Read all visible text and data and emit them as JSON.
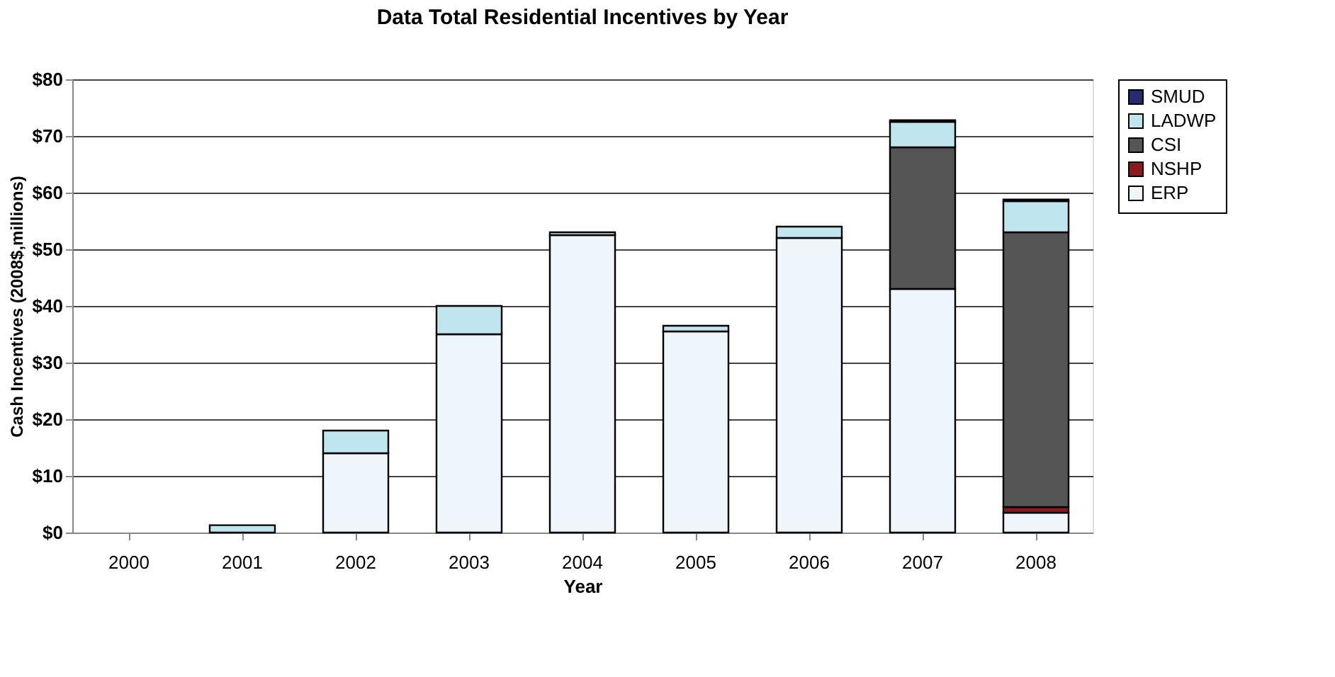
{
  "chart_data": {
    "type": "bar",
    "title": "Data Total Residential Incentives by Year",
    "xlabel": "Year",
    "ylabel": "Cash Incentives (2008$,millions)",
    "categories": [
      "2000",
      "2001",
      "2002",
      "2003",
      "2004",
      "2005",
      "2006",
      "2007",
      "2008"
    ],
    "stacked": true,
    "series": [
      {
        "name": "ERP",
        "color": "#eef6fb",
        "values": [
          null,
          null,
          14,
          35,
          52.5,
          35.5,
          52,
          43,
          3.5
        ]
      },
      {
        "name": "NSHP",
        "color": "#8b1a1a",
        "values": [
          null,
          null,
          null,
          null,
          null,
          null,
          null,
          null,
          1
        ]
      },
      {
        "name": "CSI",
        "color": "#555555",
        "values": [
          null,
          null,
          null,
          null,
          null,
          null,
          null,
          25,
          48.5
        ]
      },
      {
        "name": "LADWP",
        "color": "#bfe6ee",
        "values": [
          null,
          1.3,
          4,
          5,
          0.5,
          1,
          2,
          4.5,
          5.5
        ]
      },
      {
        "name": "SMUD",
        "color": "#2a2a6e",
        "values": [
          null,
          null,
          null,
          null,
          null,
          null,
          null,
          0.3,
          0.3
        ]
      }
    ],
    "ylim": [
      0,
      80
    ],
    "yticks": [
      {
        "value": 0,
        "label": "$0"
      },
      {
        "value": 10,
        "label": "$10"
      },
      {
        "value": 20,
        "label": "$20"
      },
      {
        "value": 30,
        "label": "$30"
      },
      {
        "value": 40,
        "label": "$40"
      },
      {
        "value": 50,
        "label": "$50"
      },
      {
        "value": 60,
        "label": "$60"
      },
      {
        "value": 70,
        "label": "$70"
      },
      {
        "value": 80,
        "label": "$80"
      }
    ],
    "grid": "y",
    "legend": "right"
  }
}
